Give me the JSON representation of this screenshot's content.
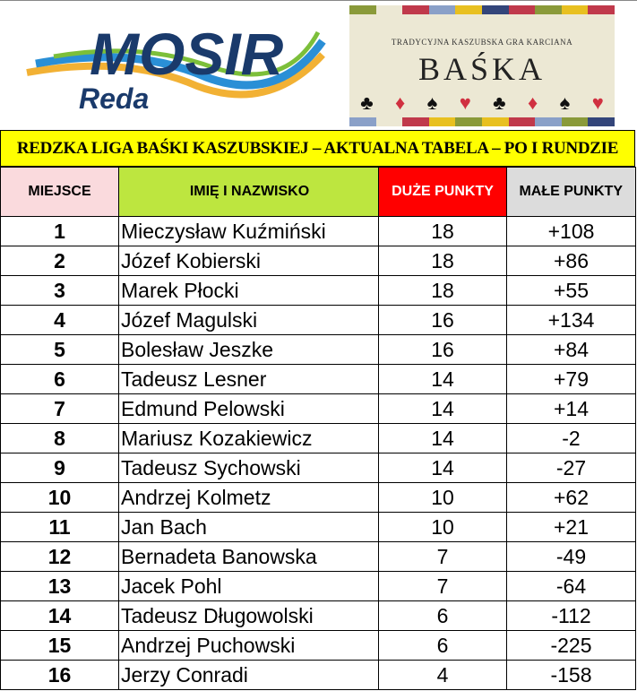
{
  "logos": {
    "mosir": {
      "text": "MOSIR",
      "subtext": "Reda"
    },
    "baska": {
      "subtitle": "TRADYCYJNA KASZUBSKA GRA KARCIANA",
      "title": "BAŚKA"
    }
  },
  "title": "REDZKA LIGA BAŚKI KASZUBSKIEJ – AKTUALNA TABELA – PO I RUNDZIE",
  "colors": {
    "title_bg": "#ffff00",
    "col1_bg": "#fadadd",
    "col2_bg": "#bde63f",
    "col3_bg": "#ff0000",
    "col4_bg": "#dcdcdc"
  },
  "headers": {
    "place": "MIEJSCE",
    "name": "IMIĘ I NAZWISKO",
    "big_points": "DUŻE PUNKTY",
    "small_points": "MAŁE PUNKTY"
  },
  "rows": [
    {
      "place": "1",
      "name": "Mieczysław Kuźmiński",
      "big": "18",
      "small": "+108"
    },
    {
      "place": "2",
      "name": "Józef Kobierski",
      "big": "18",
      "small": "+86"
    },
    {
      "place": "3",
      "name": "Marek Płocki",
      "big": "18",
      "small": "+55"
    },
    {
      "place": "4",
      "name": "Józef Magulski",
      "big": "16",
      "small": "+134"
    },
    {
      "place": "5",
      "name": "Bolesław Jeszke",
      "big": "16",
      "small": "+84"
    },
    {
      "place": "6",
      "name": "Tadeusz Lesner",
      "big": "14",
      "small": "+79"
    },
    {
      "place": "7",
      "name": "Edmund Pelowski",
      "big": "14",
      "small": "+14"
    },
    {
      "place": "8",
      "name": "Mariusz Kozakiewicz",
      "big": "14",
      "small": "-2"
    },
    {
      "place": "9",
      "name": "Tadeusz Sychowski",
      "big": "14",
      "small": "-27"
    },
    {
      "place": "10",
      "name": "Andrzej Kolmetz",
      "big": "10",
      "small": "+62"
    },
    {
      "place": "11",
      "name": "Jan Bach",
      "big": "10",
      "small": "+21"
    },
    {
      "place": "12",
      "name": "Bernadeta Banowska",
      "big": "7",
      "small": "-49"
    },
    {
      "place": "13",
      "name": "Jacek Pohl",
      "big": "7",
      "small": "-64"
    },
    {
      "place": "14",
      "name": "Tadeusz Długowolski",
      "big": "6",
      "small": "-112"
    },
    {
      "place": "15",
      "name": "Andrzej Puchowski",
      "big": "6",
      "small": "-225"
    },
    {
      "place": "16",
      "name": "Jerzy Conradi",
      "big": "4",
      "small": "-158"
    }
  ]
}
